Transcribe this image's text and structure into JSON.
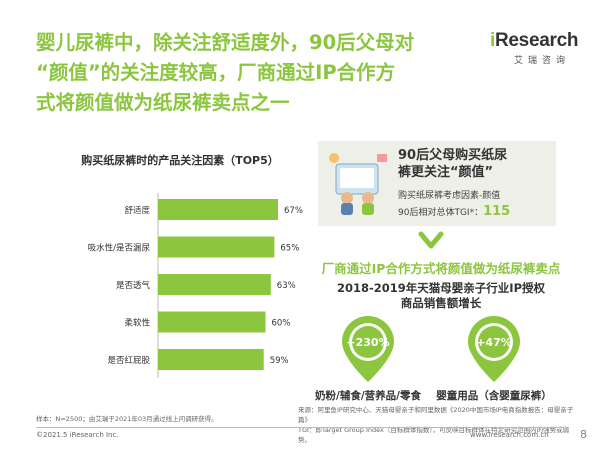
{
  "slide": {
    "title": "婴儿尿裤中，除关注舒适度外，90后父母对\n“颜值”的关注度较高，厂商通过IP合作方\n式将颜值做为纸尿裤卖点之一",
    "page_number": "8"
  },
  "brand": {
    "logo_i": "i",
    "logo_rest": "Research",
    "logo_sub": "艾瑞咨询"
  },
  "chart_data": {
    "type": "bar",
    "orientation": "horizontal",
    "title": "购买纸尿裤时的产品关注因素（TOP5）",
    "categories": [
      "舒适度",
      "吸水性/是否漏尿",
      "是否透气",
      "柔软性",
      "是否红屁股"
    ],
    "values": [
      67,
      65,
      63,
      60,
      59
    ],
    "value_labels": [
      "67%",
      "65%",
      "63%",
      "60%",
      "59%"
    ],
    "xlim": [
      0,
      100
    ],
    "color": "#8cc63f"
  },
  "panel": {
    "title": "90后父母购买纸尿\n裤更关注“颜值”",
    "line1": "购买纸尿裤考虑因素-颜值",
    "tgi_label": "90后相对总体TGI*：",
    "tgi_value": "115"
  },
  "ip": {
    "title": "厂商通过IP合作方式将颜值做为纸尿裤卖点",
    "subtitle": "2018-2019年天猫母婴亲子行业IP授权\n商品销售额增长",
    "items": [
      {
        "growth": "+230%",
        "label": "奶粉/辅食/营养品/零食"
      },
      {
        "growth": "+47%",
        "label": "婴童用品（含婴童尿裤）"
      }
    ]
  },
  "footer": {
    "sample_note": "样本：N=2500；由艾瑞于2021年03月通过线上问调研获得。",
    "source_note": "来源：阿里鱼IP研究中心、天猫母婴亲子和阿里数据《2020中国市场IP电商指数报告：母婴亲子篇》\nTGI：即Target Group Index（目标群体指数），可反映目标群体在特定研究范围内的强势或弱势。",
    "copyright": "©2021.5 iResearch Inc.",
    "url": "www.iresearch.com.cn"
  },
  "colors": {
    "accent": "#8cc63f",
    "panel_bg": "#eef0e8"
  }
}
